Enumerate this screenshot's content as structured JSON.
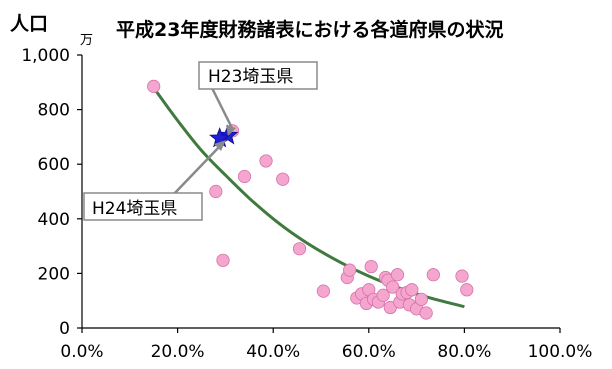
{
  "chart_data": {
    "type": "scatter",
    "title": "平成23年度財務諸表における各道府県の状況",
    "ylabel": "人口",
    "yunit": "万",
    "xlabel": "",
    "xlim": [
      0,
      100
    ],
    "ylim": [
      0,
      1000
    ],
    "xticks": [
      "0.0%",
      "20.0%",
      "40.0%",
      "60.0%",
      "80.0%",
      "100.0%"
    ],
    "yticks": [
      "0",
      "200",
      "400",
      "600",
      "800",
      "1,000"
    ],
    "grid": false,
    "marker_color": "#f4a6cf",
    "marker_edge": "#d670a8",
    "trend_color": "#3f7a3f",
    "highlight_color": "#1f1fd6",
    "points": [
      {
        "x": 15.0,
        "y": 885
      },
      {
        "x": 31.5,
        "y": 722
      },
      {
        "x": 38.5,
        "y": 612
      },
      {
        "x": 34.0,
        "y": 555
      },
      {
        "x": 42.0,
        "y": 545
      },
      {
        "x": 28.0,
        "y": 500
      },
      {
        "x": 45.5,
        "y": 290
      },
      {
        "x": 29.5,
        "y": 248
      },
      {
        "x": 50.5,
        "y": 135
      },
      {
        "x": 55.5,
        "y": 185
      },
      {
        "x": 56.0,
        "y": 212
      },
      {
        "x": 57.5,
        "y": 110
      },
      {
        "x": 58.5,
        "y": 125
      },
      {
        "x": 59.5,
        "y": 90
      },
      {
        "x": 60.0,
        "y": 140
      },
      {
        "x": 60.5,
        "y": 225
      },
      {
        "x": 61.0,
        "y": 105
      },
      {
        "x": 62.0,
        "y": 95
      },
      {
        "x": 63.0,
        "y": 120
      },
      {
        "x": 63.5,
        "y": 185
      },
      {
        "x": 64.0,
        "y": 175
      },
      {
        "x": 64.5,
        "y": 75
      },
      {
        "x": 65.0,
        "y": 150
      },
      {
        "x": 66.0,
        "y": 195
      },
      {
        "x": 66.5,
        "y": 95
      },
      {
        "x": 67.0,
        "y": 125
      },
      {
        "x": 68.0,
        "y": 130
      },
      {
        "x": 68.5,
        "y": 85
      },
      {
        "x": 69.0,
        "y": 140
      },
      {
        "x": 70.0,
        "y": 70
      },
      {
        "x": 71.0,
        "y": 105
      },
      {
        "x": 72.0,
        "y": 55
      },
      {
        "x": 73.5,
        "y": 195
      },
      {
        "x": 79.5,
        "y": 190
      },
      {
        "x": 80.5,
        "y": 140
      }
    ],
    "trend": [
      {
        "x": 15,
        "y": 880
      },
      {
        "x": 20,
        "y": 760
      },
      {
        "x": 25,
        "y": 650
      },
      {
        "x": 30,
        "y": 560
      },
      {
        "x": 35,
        "y": 475
      },
      {
        "x": 40,
        "y": 400
      },
      {
        "x": 45,
        "y": 335
      },
      {
        "x": 50,
        "y": 280
      },
      {
        "x": 55,
        "y": 232
      },
      {
        "x": 60,
        "y": 190
      },
      {
        "x": 65,
        "y": 155
      },
      {
        "x": 70,
        "y": 125
      },
      {
        "x": 75,
        "y": 100
      },
      {
        "x": 80,
        "y": 78
      }
    ],
    "highlights": [
      {
        "label": "H23埼玉県",
        "x": 30.5,
        "y": 705
      },
      {
        "label": "H24埼玉県",
        "x": 28.8,
        "y": 695
      }
    ]
  }
}
